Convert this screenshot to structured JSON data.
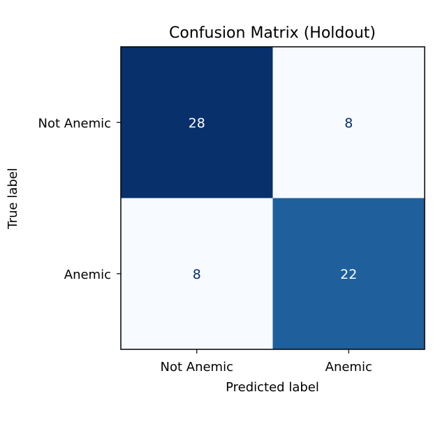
{
  "chart_data": {
    "type": "heatmap",
    "title": "Confusion Matrix (Holdout)",
    "xlabel": "Predicted label",
    "ylabel": "True label",
    "x_categories": [
      "Not Anemic",
      "Anemic"
    ],
    "y_categories": [
      "Not Anemic",
      "Anemic"
    ],
    "values": [
      [
        28,
        8
      ],
      [
        8,
        22
      ]
    ],
    "colormap": "Blues",
    "vmin": 8,
    "vmax": 28,
    "colorbar": false,
    "grid": false,
    "colors": {
      "low": "#f7fbff",
      "mid": "#2e7ebc",
      "high": "#08306b",
      "text_on_dark": "#ffffff",
      "text_on_light": "#08306b"
    }
  }
}
